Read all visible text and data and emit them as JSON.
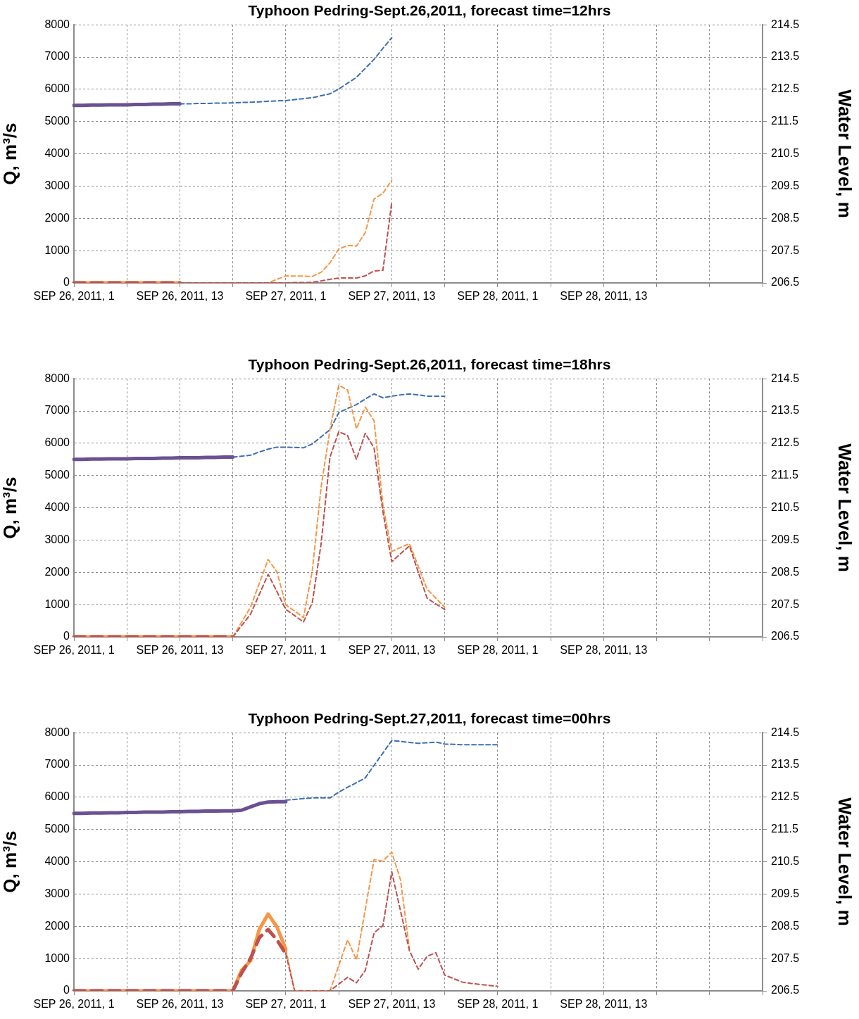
{
  "chart_data": [
    {
      "type": "line",
      "title": "Typhoon Pedring-Sept.26,2011, forecast time=12hrs",
      "ylabel": "Q, m³/s",
      "y2label": "Water Level, m",
      "categories": [
        "SEP 26, 2011, 1",
        null,
        null,
        null,
        null,
        null,
        null,
        null,
        null,
        null,
        null,
        null,
        "SEP 26, 2011, 13",
        null,
        null,
        null,
        null,
        null,
        null,
        null,
        null,
        null,
        null,
        null,
        "SEP 27, 2011, 1",
        null,
        null,
        null,
        null,
        null,
        null,
        null,
        null,
        null,
        null,
        null,
        "SEP 27, 2011, 13",
        null,
        null,
        null,
        null,
        null,
        null,
        null,
        null,
        null,
        null,
        null,
        "SEP 28, 2011, 1",
        null,
        null,
        null,
        null,
        null,
        null,
        null,
        null,
        null,
        null,
        null,
        "SEP 28, 2011, 13",
        null,
        null,
        null,
        null,
        null,
        null,
        null,
        null,
        null,
        null,
        null,
        null,
        null,
        null,
        null,
        null,
        null,
        null
      ],
      "ylim": [
        0,
        8000
      ],
      "yticks": [
        0,
        1000,
        2000,
        3000,
        4000,
        5000,
        6000,
        7000,
        8000
      ],
      "y2lim": [
        206.5,
        214.5
      ],
      "y2ticks": [
        206.5,
        207.5,
        208.5,
        209.5,
        210.5,
        211.5,
        212.5,
        213.5,
        214.5
      ],
      "grid": true,
      "legend": false,
      "marker": "none",
      "series": [
        {
          "color": "#6b5192",
          "axis": "y2",
          "line_style": "solid",
          "values": [
            212.0,
            212.0,
            212.01,
            212.01,
            212.02,
            212.02,
            212.02,
            212.03,
            212.03,
            212.04,
            212.04,
            212.05,
            212.05,
            null,
            null,
            null,
            null,
            null,
            null,
            null,
            null,
            null,
            null,
            null,
            null,
            null,
            null,
            null,
            null,
            null,
            null,
            null,
            null,
            null,
            null,
            null,
            null,
            null,
            null,
            null,
            null,
            null,
            null,
            null,
            null,
            null,
            null,
            null,
            null,
            null,
            null,
            null,
            null,
            null,
            null,
            null,
            null,
            null,
            null,
            null,
            null,
            null,
            null,
            null,
            null,
            null,
            null,
            null,
            null,
            null,
            null,
            null,
            null,
            null,
            null,
            null,
            null,
            null,
            null
          ]
        },
        {
          "color": "#3c6eb4",
          "axis": "y2",
          "line_style": "dashed",
          "values": [
            null,
            null,
            null,
            null,
            null,
            null,
            null,
            null,
            null,
            null,
            null,
            null,
            212.05,
            212.05,
            212.06,
            212.06,
            212.07,
            212.07,
            212.08,
            212.09,
            212.1,
            212.11,
            212.13,
            212.14,
            212.15,
            212.18,
            212.21,
            212.24,
            212.3,
            212.36,
            212.51,
            212.69,
            212.87,
            213.15,
            213.43,
            213.77,
            214.1,
            null,
            null,
            null,
            null,
            null,
            null,
            null,
            null,
            null,
            null,
            null,
            null,
            null,
            null,
            null,
            null,
            null,
            null,
            null,
            null,
            null,
            null,
            null,
            null,
            null,
            null,
            null,
            null,
            null,
            null,
            null,
            null,
            null,
            null,
            null,
            null,
            null,
            null,
            null,
            null,
            null,
            null
          ]
        },
        {
          "color": "#f79646",
          "line_style": "solid",
          "values": [
            0,
            0,
            0,
            0,
            0,
            0,
            0,
            0,
            0,
            0,
            0,
            0,
            0,
            null,
            null,
            null,
            null,
            null,
            null,
            null,
            null,
            null,
            null,
            null,
            null,
            null,
            null,
            null,
            null,
            null,
            null,
            null,
            null,
            null,
            null,
            null,
            null,
            null,
            null,
            null,
            null,
            null,
            null,
            null,
            null,
            null,
            null,
            null,
            null,
            null,
            null,
            null,
            null,
            null,
            null,
            null,
            null,
            null,
            null,
            null,
            null,
            null,
            null,
            null,
            null,
            null,
            null,
            null,
            null,
            null,
            null,
            null,
            null,
            null,
            null,
            null,
            null,
            null,
            null
          ]
        },
        {
          "color": "#c0504d",
          "line_style": "dashed",
          "values": [
            0,
            0,
            0,
            0,
            0,
            0,
            0,
            0,
            0,
            0,
            0,
            0,
            0,
            null,
            null,
            null,
            null,
            null,
            null,
            null,
            null,
            null,
            null,
            null,
            null,
            null,
            null,
            null,
            null,
            null,
            null,
            null,
            null,
            null,
            null,
            null,
            null,
            null,
            null,
            null,
            null,
            null,
            null,
            null,
            null,
            null,
            null,
            null,
            null,
            null,
            null,
            null,
            null,
            null,
            null,
            null,
            null,
            null,
            null,
            null,
            null,
            null,
            null,
            null,
            null,
            null,
            null,
            null,
            null,
            null,
            null,
            null,
            null,
            null,
            null,
            null,
            null,
            null,
            null
          ]
        },
        {
          "color": "#f79646",
          "line_style": "dashed",
          "values": [
            null,
            null,
            null,
            null,
            null,
            null,
            null,
            null,
            null,
            null,
            null,
            null,
            0,
            0,
            0,
            0,
            0,
            0,
            0,
            0,
            0,
            0,
            0,
            110,
            220,
            210,
            210,
            200,
            330,
            620,
            1050,
            1160,
            1140,
            1560,
            2600,
            2780,
            3180,
            null,
            null,
            null,
            null,
            null,
            null,
            null,
            null,
            null,
            null,
            null,
            null,
            null,
            null,
            null,
            null,
            null,
            null,
            null,
            null,
            null,
            null,
            null,
            null,
            null,
            null,
            null,
            null,
            null,
            null,
            null,
            null,
            null,
            null,
            null,
            null,
            null,
            null,
            null,
            null,
            null,
            null
          ]
        },
        {
          "color": "#c0504d",
          "line_style": "dashed",
          "values": [
            null,
            null,
            null,
            null,
            null,
            null,
            null,
            null,
            null,
            null,
            null,
            null,
            0,
            0,
            0,
            0,
            0,
            0,
            0,
            0,
            0,
            0,
            0,
            0,
            0,
            10,
            10,
            20,
            60,
            110,
            150,
            150,
            150,
            220,
            370,
            390,
            2500,
            null,
            null,
            null,
            null,
            null,
            null,
            null,
            null,
            null,
            null,
            null,
            null,
            null,
            null,
            null,
            null,
            null,
            null,
            null,
            null,
            null,
            null,
            null,
            null,
            null,
            null,
            null,
            null,
            null,
            null,
            null,
            null,
            null,
            null,
            null,
            null,
            null,
            null,
            null,
            null,
            null,
            null
          ]
        }
      ]
    },
    {
      "type": "line",
      "title": "Typhoon Pedring-Sept.26,2011, forecast time=18hrs",
      "ylabel": "Q, m³/s",
      "y2label": "Water Level, m",
      "categories": [
        "SEP 26, 2011, 1",
        null,
        null,
        null,
        null,
        null,
        null,
        null,
        null,
        null,
        null,
        null,
        "SEP 26, 2011, 13",
        null,
        null,
        null,
        null,
        null,
        null,
        null,
        null,
        null,
        null,
        null,
        "SEP 27, 2011, 1",
        null,
        null,
        null,
        null,
        null,
        null,
        null,
        null,
        null,
        null,
        null,
        "SEP 27, 2011, 13",
        null,
        null,
        null,
        null,
        null,
        null,
        null,
        null,
        null,
        null,
        null,
        "SEP 28, 2011, 1",
        null,
        null,
        null,
        null,
        null,
        null,
        null,
        null,
        null,
        null,
        null,
        "SEP 28, 2011, 13",
        null,
        null,
        null,
        null,
        null,
        null,
        null,
        null,
        null,
        null,
        null,
        null,
        null,
        null,
        null,
        null,
        null,
        null
      ],
      "ylim": [
        0,
        8000
      ],
      "yticks": [
        0,
        1000,
        2000,
        3000,
        4000,
        5000,
        6000,
        7000,
        8000
      ],
      "y2lim": [
        206.5,
        214.5
      ],
      "y2ticks": [
        206.5,
        207.5,
        208.5,
        209.5,
        210.5,
        211.5,
        212.5,
        213.5,
        214.5
      ],
      "grid": true,
      "legend": false,
      "marker": "none",
      "series": [
        {
          "color": "#6b5192",
          "axis": "y2",
          "line_style": "solid",
          "values": [
            212.0,
            212.0,
            212.01,
            212.01,
            212.02,
            212.02,
            212.02,
            212.03,
            212.03,
            212.03,
            212.04,
            212.04,
            212.05,
            212.05,
            212.05,
            212.06,
            212.06,
            212.07,
            212.07,
            null,
            null,
            null,
            null,
            null,
            null,
            null,
            null,
            null,
            null,
            null,
            null,
            null,
            null,
            null,
            null,
            null,
            null,
            null,
            null,
            null,
            null,
            null,
            null,
            null,
            null,
            null,
            null,
            null,
            null,
            null,
            null,
            null,
            null,
            null,
            null,
            null,
            null,
            null,
            null,
            null,
            null,
            null,
            null,
            null,
            null,
            null,
            null,
            null,
            null,
            null,
            null,
            null,
            null,
            null,
            null,
            null,
            null,
            null,
            null
          ]
        },
        {
          "color": "#3c6eb4",
          "axis": "y2",
          "line_style": "dashed",
          "values": [
            null,
            null,
            null,
            null,
            null,
            null,
            null,
            null,
            null,
            null,
            null,
            null,
            null,
            null,
            null,
            null,
            null,
            null,
            212.07,
            212.1,
            212.13,
            212.23,
            212.32,
            212.38,
            212.38,
            212.37,
            212.36,
            212.48,
            212.7,
            212.92,
            213.45,
            213.58,
            213.7,
            213.87,
            214.03,
            213.91,
            213.96,
            214.0,
            214.03,
            214.0,
            213.96,
            213.96,
            213.96,
            null,
            null,
            null,
            null,
            null,
            null,
            null,
            null,
            null,
            null,
            null,
            null,
            null,
            null,
            null,
            null,
            null,
            null,
            null,
            null,
            null,
            null,
            null,
            null,
            null,
            null,
            null,
            null,
            null,
            null,
            null,
            null,
            null,
            null,
            null,
            null
          ]
        },
        {
          "color": "#f79646",
          "line_style": "solid",
          "values": [
            0,
            0,
            0,
            0,
            0,
            0,
            0,
            0,
            0,
            0,
            0,
            0,
            0,
            0,
            0,
            0,
            0,
            0,
            0,
            null,
            null,
            null,
            null,
            null,
            null,
            null,
            null,
            null,
            null,
            null,
            null,
            null,
            null,
            null,
            null,
            null,
            null,
            null,
            null,
            null,
            null,
            null,
            null,
            null,
            null,
            null,
            null,
            null,
            null,
            null,
            null,
            null,
            null,
            null,
            null,
            null,
            null,
            null,
            null,
            null,
            null,
            null,
            null,
            null,
            null,
            null,
            null,
            null,
            null,
            null,
            null,
            null,
            null,
            null,
            null,
            null,
            null,
            null,
            null
          ]
        },
        {
          "color": "#c0504d",
          "line_style": "dashed",
          "values": [
            0,
            0,
            0,
            0,
            0,
            0,
            0,
            0,
            0,
            0,
            0,
            0,
            0,
            0,
            0,
            0,
            0,
            0,
            0,
            null,
            null,
            null,
            null,
            null,
            null,
            null,
            null,
            null,
            null,
            null,
            null,
            null,
            null,
            null,
            null,
            null,
            null,
            null,
            null,
            null,
            null,
            null,
            null,
            null,
            null,
            null,
            null,
            null,
            null,
            null,
            null,
            null,
            null,
            null,
            null,
            null,
            null,
            null,
            null,
            null,
            null,
            null,
            null,
            null,
            null,
            null,
            null,
            null,
            null,
            null,
            null,
            null,
            null,
            null,
            null,
            null,
            null,
            null,
            null
          ]
        },
        {
          "color": "#f79646",
          "line_style": "dashed",
          "values": [
            null,
            null,
            null,
            null,
            null,
            null,
            null,
            null,
            null,
            null,
            null,
            null,
            null,
            null,
            null,
            null,
            null,
            null,
            0,
            460,
            920,
            1660,
            2400,
            2010,
            990,
            800,
            600,
            2050,
            4650,
            6420,
            7800,
            7650,
            6450,
            7120,
            6700,
            4090,
            2650,
            2770,
            2890,
            2190,
            1480,
            1200,
            920,
            null,
            null,
            null,
            null,
            null,
            null,
            null,
            null,
            null,
            null,
            null,
            null,
            null,
            null,
            null,
            null,
            null,
            null,
            null,
            null,
            null,
            null,
            null,
            null,
            null,
            null,
            null,
            null,
            null,
            null,
            null,
            null,
            null,
            null,
            null,
            null
          ]
        },
        {
          "color": "#c0504d",
          "line_style": "dashed",
          "values": [
            null,
            null,
            null,
            null,
            null,
            null,
            null,
            null,
            null,
            null,
            null,
            null,
            null,
            null,
            null,
            null,
            null,
            null,
            0,
            350,
            700,
            1320,
            1940,
            1400,
            850,
            660,
            460,
            1060,
            2890,
            5570,
            6360,
            6240,
            5500,
            6310,
            5850,
            3880,
            2330,
            2580,
            2820,
            2010,
            1200,
            1020,
            850,
            null,
            null,
            null,
            null,
            null,
            null,
            null,
            null,
            null,
            null,
            null,
            null,
            null,
            null,
            null,
            null,
            null,
            null,
            null,
            null,
            null,
            null,
            null,
            null,
            null,
            null,
            null,
            null,
            null,
            null,
            null,
            null,
            null,
            null,
            null,
            null
          ]
        }
      ]
    },
    {
      "type": "line",
      "title": "Typhoon Pedring-Sept.27,2011, forecast time=00hrs",
      "ylabel": "Q, m³/s",
      "y2label": "Water Level, m",
      "categories": [
        "SEP 26, 2011, 1",
        null,
        null,
        null,
        null,
        null,
        null,
        null,
        null,
        null,
        null,
        null,
        "SEP 26, 2011, 13",
        null,
        null,
        null,
        null,
        null,
        null,
        null,
        null,
        null,
        null,
        null,
        "SEP 27, 2011, 1",
        null,
        null,
        null,
        null,
        null,
        null,
        null,
        null,
        null,
        null,
        null,
        "SEP 27, 2011, 13",
        null,
        null,
        null,
        null,
        null,
        null,
        null,
        null,
        null,
        null,
        null,
        "SEP 28, 2011, 1",
        null,
        null,
        null,
        null,
        null,
        null,
        null,
        null,
        null,
        null,
        null,
        "SEP 28, 2011, 13",
        null,
        null,
        null,
        null,
        null,
        null,
        null,
        null,
        null,
        null,
        null,
        null,
        null,
        null,
        null,
        null,
        null,
        null
      ],
      "ylim": [
        0,
        8000
      ],
      "yticks": [
        0,
        1000,
        2000,
        3000,
        4000,
        5000,
        6000,
        7000,
        8000
      ],
      "y2lim": [
        206.5,
        214.5
      ],
      "y2ticks": [
        206.5,
        207.5,
        208.5,
        209.5,
        210.5,
        211.5,
        212.5,
        213.5,
        214.5
      ],
      "grid": true,
      "legend": false,
      "marker": "none",
      "series": [
        {
          "color": "#6b5192",
          "axis": "y2",
          "line_style": "solid",
          "values": [
            212.0,
            212.0,
            212.01,
            212.01,
            212.02,
            212.02,
            212.03,
            212.03,
            212.04,
            212.04,
            212.04,
            212.05,
            212.05,
            212.06,
            212.06,
            212.07,
            212.07,
            212.08,
            212.08,
            212.1,
            212.2,
            212.3,
            212.35,
            212.36,
            212.36,
            null,
            null,
            null,
            null,
            null,
            null,
            null,
            null,
            null,
            null,
            null,
            null,
            null,
            null,
            null,
            null,
            null,
            null,
            null,
            null,
            null,
            null,
            null,
            null,
            null,
            null,
            null,
            null,
            null,
            null,
            null,
            null,
            null,
            null,
            null,
            null,
            null,
            null,
            null,
            null,
            null,
            null,
            null,
            null,
            null,
            null,
            null,
            null,
            null,
            null,
            null,
            null,
            null,
            null
          ]
        },
        {
          "color": "#3c6eb4",
          "axis": "y2",
          "line_style": "dashed",
          "values": [
            null,
            null,
            null,
            null,
            null,
            null,
            null,
            null,
            null,
            null,
            null,
            null,
            null,
            null,
            null,
            null,
            null,
            null,
            null,
            null,
            null,
            null,
            null,
            null,
            212.41,
            212.43,
            212.46,
            212.48,
            212.48,
            212.48,
            212.66,
            212.81,
            212.95,
            213.1,
            213.49,
            213.87,
            214.26,
            214.23,
            214.2,
            214.17,
            214.19,
            214.21,
            214.15,
            214.14,
            214.13,
            214.13,
            214.13,
            214.13,
            214.13,
            null,
            null,
            null,
            null,
            null,
            null,
            null,
            null,
            null,
            null,
            null,
            null,
            null,
            null,
            null,
            null,
            null,
            null,
            null,
            null,
            null,
            null,
            null,
            null,
            null,
            null,
            null,
            null,
            null,
            null
          ]
        },
        {
          "color": "#f79646",
          "line_style": "solid",
          "values": [
            0,
            0,
            0,
            0,
            0,
            0,
            0,
            0,
            0,
            0,
            0,
            0,
            0,
            0,
            0,
            0,
            0,
            0,
            0,
            640,
            930,
            1910,
            2380,
            1980,
            1290,
            null,
            null,
            null,
            null,
            null,
            null,
            null,
            null,
            null,
            null,
            null,
            null,
            null,
            null,
            null,
            null,
            null,
            null,
            null,
            null,
            null,
            null,
            null,
            null,
            null,
            null,
            null,
            null,
            null,
            null,
            null,
            null,
            null,
            null,
            null,
            null,
            null,
            null,
            null,
            null,
            null,
            null,
            null,
            null,
            null,
            null,
            null,
            null,
            null,
            null,
            null,
            null,
            null,
            null
          ]
        },
        {
          "color": "#c0504d",
          "line_style": "dashed",
          "values": [
            0,
            0,
            0,
            0,
            0,
            0,
            0,
            0,
            0,
            0,
            0,
            0,
            0,
            0,
            0,
            0,
            0,
            0,
            0,
            560,
            1000,
            1650,
            1900,
            1580,
            1150,
            null,
            null,
            null,
            null,
            null,
            null,
            null,
            null,
            null,
            null,
            null,
            null,
            null,
            null,
            null,
            null,
            null,
            null,
            null,
            null,
            null,
            null,
            null,
            null,
            null,
            null,
            null,
            null,
            null,
            null,
            null,
            null,
            null,
            null,
            null,
            null,
            null,
            null,
            null,
            null,
            null,
            null,
            null,
            null,
            null,
            null,
            null,
            null,
            null,
            null,
            null,
            null,
            null,
            null
          ]
        },
        {
          "color": "#f79646",
          "line_style": "dashed",
          "values": [
            null,
            null,
            null,
            null,
            null,
            null,
            null,
            null,
            null,
            null,
            null,
            null,
            null,
            null,
            null,
            null,
            null,
            null,
            null,
            null,
            null,
            null,
            null,
            null,
            1290,
            0,
            0,
            0,
            0,
            0,
            790,
            1580,
            960,
            2520,
            4070,
            4020,
            4300,
            3430,
            1300,
            null,
            null,
            null,
            null,
            null,
            null,
            null,
            null,
            null,
            null,
            null,
            null,
            null,
            null,
            null,
            null,
            null,
            null,
            null,
            null,
            null,
            null,
            null,
            null,
            null,
            null,
            null,
            null,
            null,
            null,
            null,
            null,
            null,
            null,
            null,
            null,
            null,
            null,
            null,
            null
          ]
        },
        {
          "color": "#c0504d",
          "line_style": "dashed",
          "values": [
            null,
            null,
            null,
            null,
            null,
            null,
            null,
            null,
            null,
            null,
            null,
            null,
            null,
            null,
            null,
            null,
            null,
            null,
            null,
            null,
            null,
            null,
            null,
            null,
            1150,
            0,
            0,
            0,
            0,
            0,
            210,
            420,
            250,
            630,
            1800,
            2020,
            3690,
            2470,
            1250,
            670,
            1070,
            1180,
            490,
            380,
            270,
            230,
            200,
            170,
            140,
            null,
            null,
            null,
            null,
            null,
            null,
            null,
            null,
            null,
            null,
            null,
            null,
            null,
            null,
            null,
            null,
            null,
            null,
            null,
            null,
            null,
            null,
            null,
            null,
            null,
            null,
            null,
            null,
            null,
            null
          ]
        }
      ]
    }
  ]
}
